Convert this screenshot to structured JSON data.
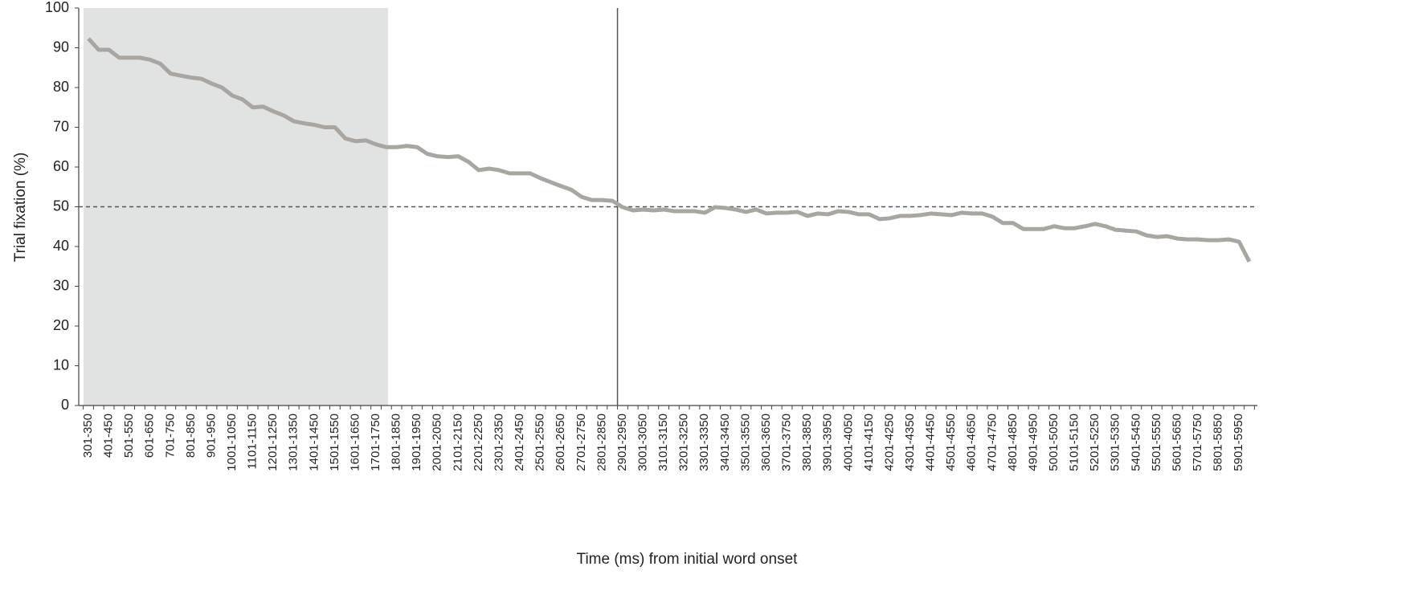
{
  "chart_data": {
    "type": "line",
    "x_label": "Time (ms) from initial word onset",
    "y_label": "Trial fixation (%)",
    "categories": [
      "301-350",
      null,
      "401-450",
      null,
      "501-550",
      null,
      "601-650",
      null,
      "701-750",
      null,
      "801-850",
      null,
      "901-950",
      null,
      "1001-1050",
      null,
      "1101-1150",
      null,
      "1201-1250",
      null,
      "1301-1350",
      null,
      "1401-1450",
      null,
      "1501-1550",
      null,
      "1601-1650",
      null,
      "1701-1750",
      null,
      "1801-1850",
      null,
      "1901-1950",
      null,
      "2001-2050",
      null,
      "2101-2150",
      null,
      "2201-2250",
      null,
      "2301-2350",
      null,
      "2401-2450",
      null,
      "2501-2550",
      null,
      "2601-2650",
      null,
      "2701-2750",
      null,
      "2801-2850",
      null,
      "2901-2950",
      null,
      "3001-3050",
      null,
      "3101-3150",
      null,
      "3201-3250",
      null,
      "3301-3350",
      null,
      "3401-3450",
      null,
      "3501-3550",
      null,
      "3601-3650",
      null,
      "3701-3750",
      null,
      "3801-3850",
      null,
      "3901-3950",
      null,
      "4001-4050",
      null,
      "4101-4150",
      null,
      "4201-4250",
      null,
      "4301-4350",
      null,
      "4401-4450",
      null,
      "4501-4550",
      null,
      "4601-4650",
      null,
      "4701-4750",
      null,
      "4801-4850",
      null,
      "4901-4950",
      null,
      "5001-5050",
      null,
      "5101-5150",
      null,
      "5201-5250",
      null,
      "5301-5350",
      null,
      "5401-5450",
      null,
      "5501-5550",
      null,
      "5601-5650",
      null,
      "5701-5750",
      null,
      "5801-5850",
      null,
      "5901-5950",
      null
    ],
    "values": [
      92.3,
      89.5,
      89.5,
      87.5,
      87.5,
      87.5,
      87,
      86,
      83.5,
      83,
      82.5,
      82.2,
      81,
      80,
      78,
      77,
      75,
      75.2,
      74,
      73,
      71.5,
      71,
      70.6,
      70,
      70,
      67.2,
      66.5,
      66.7,
      65.7,
      65,
      65,
      65.3,
      65,
      63.3,
      62.7,
      62.5,
      62.7,
      61.3,
      59.2,
      59.6,
      59.2,
      58.4,
      58.4,
      58.4,
      57.2,
      56.2,
      55.2,
      54.3,
      52.5,
      51.7,
      51.7,
      51.5,
      49.9,
      49.1,
      49.3,
      49.1,
      49.3,
      48.9,
      48.9,
      48.9,
      48.5,
      49.9,
      49.7,
      49.3,
      48.7,
      49.3,
      48.3,
      48.5,
      48.5,
      48.7,
      47.7,
      48.3,
      48.1,
      48.9,
      48.7,
      48.1,
      48.1,
      46.9,
      47.1,
      47.7,
      47.7,
      47.9,
      48.3,
      48.1,
      47.9,
      48.5,
      48.3,
      48.3,
      47.5,
      45.9,
      45.9,
      44.4,
      44.4,
      44.4,
      45.1,
      44.6,
      44.6,
      45.1,
      45.7,
      45.1,
      44.2,
      44,
      43.8,
      42.8,
      42.4,
      42.6,
      42,
      41.8,
      41.8,
      41.6,
      41.6,
      41.8,
      41.2,
      36.2
    ],
    "color": "#a9a6a1",
    "ylim": [
      0,
      100
    ],
    "yticks": [
      0,
      10,
      20,
      30,
      40,
      50,
      60,
      70,
      80,
      90,
      100
    ],
    "hline": 50,
    "grid": false
  }
}
